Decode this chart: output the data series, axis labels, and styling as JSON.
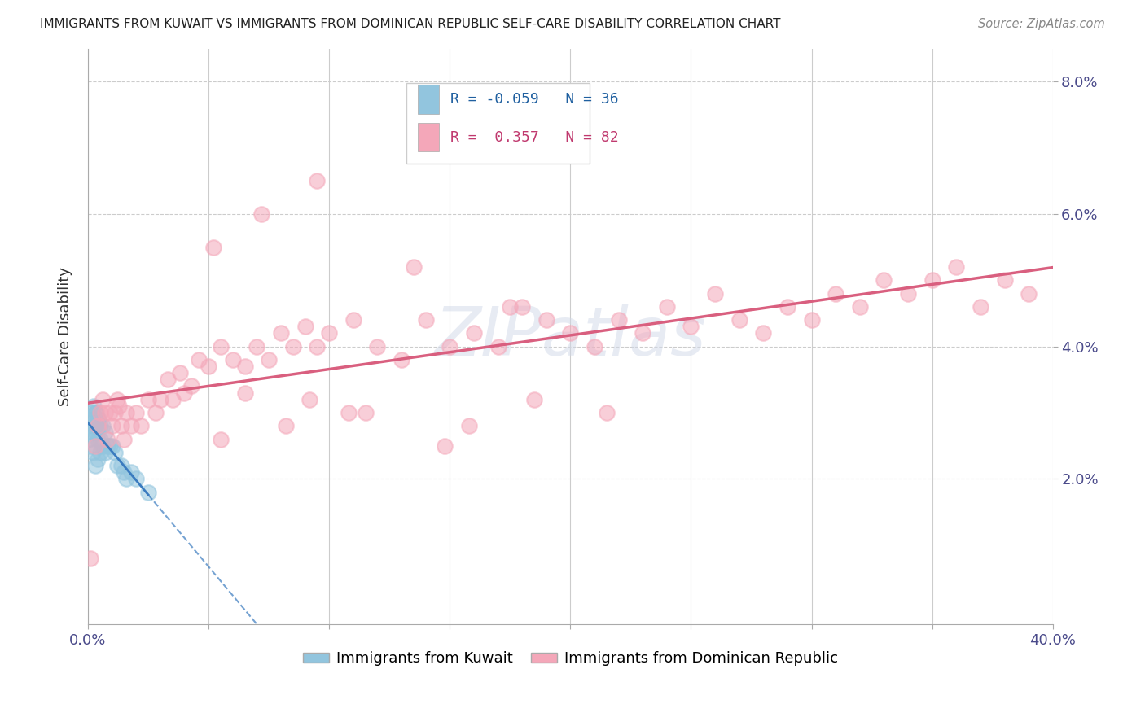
{
  "title": "IMMIGRANTS FROM KUWAIT VS IMMIGRANTS FROM DOMINICAN REPUBLIC SELF-CARE DISABILITY CORRELATION CHART",
  "source": "Source: ZipAtlas.com",
  "ylabel": "Self-Care Disability",
  "legend_label_kuwait": "Immigrants from Kuwait",
  "legend_label_dr": "Immigrants from Dominican Republic",
  "kuwait_R": -0.059,
  "kuwait_N": 36,
  "dr_R": 0.357,
  "dr_N": 82,
  "kuwait_color": "#92c5de",
  "dr_color": "#f4a7b9",
  "kuwait_trend_color": "#3a7bbf",
  "dr_trend_color": "#d95f7f",
  "xlim": [
    0.0,
    0.4
  ],
  "ylim": [
    -0.002,
    0.085
  ],
  "yticks": [
    0.02,
    0.04,
    0.06,
    0.08
  ],
  "ytick_labels": [
    "2.0%",
    "4.0%",
    "6.0%",
    "8.0%"
  ],
  "kuwait_x": [
    0.0005,
    0.001,
    0.001,
    0.0015,
    0.002,
    0.002,
    0.002,
    0.0025,
    0.003,
    0.003,
    0.003,
    0.003,
    0.0035,
    0.004,
    0.004,
    0.004,
    0.004,
    0.0045,
    0.005,
    0.005,
    0.005,
    0.006,
    0.006,
    0.007,
    0.007,
    0.008,
    0.009,
    0.01,
    0.011,
    0.012,
    0.014,
    0.015,
    0.016,
    0.018,
    0.02,
    0.025
  ],
  "kuwait_y": [
    0.026,
    0.028,
    0.025,
    0.03,
    0.029,
    0.027,
    0.024,
    0.031,
    0.03,
    0.028,
    0.027,
    0.022,
    0.03,
    0.029,
    0.028,
    0.026,
    0.023,
    0.029,
    0.028,
    0.026,
    0.024,
    0.028,
    0.025,
    0.027,
    0.024,
    0.025,
    0.025,
    0.025,
    0.024,
    0.022,
    0.022,
    0.021,
    0.02,
    0.021,
    0.02,
    0.018
  ],
  "dr_x": [
    0.001,
    0.003,
    0.004,
    0.005,
    0.006,
    0.007,
    0.008,
    0.009,
    0.01,
    0.011,
    0.012,
    0.013,
    0.014,
    0.015,
    0.016,
    0.018,
    0.02,
    0.022,
    0.025,
    0.028,
    0.03,
    0.033,
    0.035,
    0.038,
    0.04,
    0.043,
    0.046,
    0.05,
    0.055,
    0.06,
    0.065,
    0.07,
    0.075,
    0.08,
    0.085,
    0.09,
    0.095,
    0.1,
    0.11,
    0.12,
    0.13,
    0.14,
    0.15,
    0.16,
    0.17,
    0.18,
    0.19,
    0.2,
    0.21,
    0.22,
    0.23,
    0.24,
    0.25,
    0.26,
    0.27,
    0.28,
    0.29,
    0.3,
    0.31,
    0.32,
    0.33,
    0.34,
    0.35,
    0.36,
    0.37,
    0.38,
    0.39,
    0.052,
    0.072,
    0.095,
    0.135,
    0.175,
    0.055,
    0.082,
    0.108,
    0.148,
    0.065,
    0.092,
    0.115,
    0.158,
    0.185,
    0.215
  ],
  "dr_y": [
    0.008,
    0.025,
    0.028,
    0.03,
    0.032,
    0.03,
    0.026,
    0.03,
    0.028,
    0.03,
    0.032,
    0.031,
    0.028,
    0.026,
    0.03,
    0.028,
    0.03,
    0.028,
    0.032,
    0.03,
    0.032,
    0.035,
    0.032,
    0.036,
    0.033,
    0.034,
    0.038,
    0.037,
    0.04,
    0.038,
    0.037,
    0.04,
    0.038,
    0.042,
    0.04,
    0.043,
    0.04,
    0.042,
    0.044,
    0.04,
    0.038,
    0.044,
    0.04,
    0.042,
    0.04,
    0.046,
    0.044,
    0.042,
    0.04,
    0.044,
    0.042,
    0.046,
    0.043,
    0.048,
    0.044,
    0.042,
    0.046,
    0.044,
    0.048,
    0.046,
    0.05,
    0.048,
    0.05,
    0.052,
    0.046,
    0.05,
    0.048,
    0.055,
    0.06,
    0.065,
    0.052,
    0.046,
    0.026,
    0.028,
    0.03,
    0.025,
    0.033,
    0.032,
    0.03,
    0.028,
    0.032,
    0.03
  ]
}
